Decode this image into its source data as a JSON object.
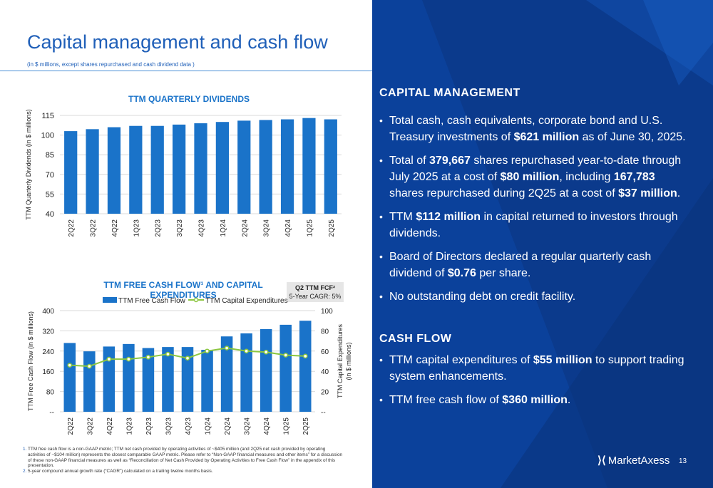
{
  "page": {
    "title": "Capital management and cash flow",
    "subtitle": "(in $ millions, except shares repurchased and cash dividend data )",
    "page_number": "13",
    "logo_text": "MarketAxess",
    "colors": {
      "brand_blue": "#1f5fb8",
      "bar_blue": "#1a73c9",
      "panel_blue": "#0b3a8c",
      "line_green": "#8cc63f"
    }
  },
  "chart_data": [
    {
      "type": "bar",
      "title": "TTM QUARTERLY DIVIDENDS",
      "ylabel": "TTM Quarterly Dividends (in $ millions)",
      "categories": [
        "2Q22",
        "3Q22",
        "4Q22",
        "1Q23",
        "2Q23",
        "3Q23",
        "4Q23",
        "1Q24",
        "2Q24",
        "3Q24",
        "4Q24",
        "1Q25",
        "2Q25"
      ],
      "values": [
        103,
        104.5,
        106,
        107,
        107,
        108,
        109,
        110,
        111,
        111.5,
        112,
        113,
        112
      ],
      "ylim": [
        40,
        115
      ],
      "yticks": [
        "40",
        "55",
        "70",
        "85",
        "100",
        "115"
      ]
    },
    {
      "type": "bar",
      "title": "TTM FREE CASH FLOW¹ AND CAPITAL EXPENDITURES",
      "ylabel": "TTM Free Cash Flow (in $ millions)",
      "y2label_line1": "TTM Capital Expenditures",
      "y2label_line2": "(in $ millions)",
      "categories": [
        "2Q22",
        "3Q22",
        "4Q22",
        "1Q23",
        "2Q23",
        "3Q23",
        "4Q23",
        "1Q24",
        "2Q24",
        "3Q24",
        "4Q24",
        "1Q25",
        "2Q25"
      ],
      "series": [
        {
          "name": "TTM Free Cash Flow",
          "type": "bar",
          "axis": "left",
          "values": [
            272,
            239,
            258,
            268,
            252,
            256,
            256,
            245,
            298,
            310,
            327,
            344,
            360
          ]
        },
        {
          "name": "TTM Capital Expenditures",
          "type": "line",
          "axis": "right",
          "values": [
            46,
            45,
            52,
            52,
            54,
            57,
            53,
            60,
            63,
            60,
            59,
            56,
            55
          ]
        }
      ],
      "ylim": [
        0,
        400
      ],
      "y2lim": [
        0,
        100
      ],
      "yticks": [
        "--",
        "80",
        "160",
        "240",
        "320",
        "400"
      ],
      "y2ticks": [
        "--",
        "20",
        "40",
        "60",
        "80",
        "100"
      ]
    }
  ],
  "fcf_box": {
    "heading": "Q2 TTM FCF²",
    "sub": "5-Year CAGR: 5%"
  },
  "footnotes": [
    {
      "n": "1.",
      "text": "TTM free cash flow is a non-GAAP metric; TTM net cash provided by operating activities of ~$405 million (and 2Q25 net cash provided by operating activities of ~$104 million) represents the closest comparable GAAP metric. Please refer to “Non-GAAP financial measures and other items” for a discussion of these non-GAAP financial measures as well as “Reconciliation of Net Cash Provided by Operating Activities to Free Cash Flow” in the appendix of this presentation."
    },
    {
      "n": "2.",
      "text": "5-year compound annual growth rate (“CAGR”) calculated on a trailing twelve months basis."
    }
  ],
  "capital_management": {
    "heading": "CAPITAL MANAGEMENT",
    "bullets": [
      [
        {
          "t": "Total cash, cash equivalents, corporate bond and U.S. Treasury investments of "
        },
        {
          "t": "$621 million",
          "b": true
        },
        {
          "t": " as of June 30, 2025."
        }
      ],
      [
        {
          "t": "Total of "
        },
        {
          "t": "379,667",
          "b": true
        },
        {
          "t": " shares repurchased year-to-date through July 2025 at a cost of "
        },
        {
          "t": "$80 million",
          "b": true
        },
        {
          "t": ", including "
        },
        {
          "t": "167,783",
          "b": true
        },
        {
          "t": " shares repurchased during 2Q25 at a cost of "
        },
        {
          "t": "$37 million",
          "b": true
        },
        {
          "t": "."
        }
      ],
      [
        {
          "t": "TTM "
        },
        {
          "t": "$112 million",
          "b": true
        },
        {
          "t": " in capital returned to investors through dividends."
        }
      ],
      [
        {
          "t": "Board of Directors declared a regular quarterly cash dividend of "
        },
        {
          "t": "$0.76",
          "b": true
        },
        {
          "t": " per share."
        }
      ],
      [
        {
          "t": "No outstanding debt on credit facility."
        }
      ]
    ]
  },
  "cash_flow": {
    "heading": "CASH FLOW",
    "bullets": [
      [
        {
          "t": "TTM capital expenditures of "
        },
        {
          "t": "$55 million",
          "b": true
        },
        {
          "t": " to support trading system enhancements."
        }
      ],
      [
        {
          "t": "TTM free cash flow of "
        },
        {
          "t": "$360 million",
          "b": true
        },
        {
          "t": "."
        }
      ]
    ]
  }
}
